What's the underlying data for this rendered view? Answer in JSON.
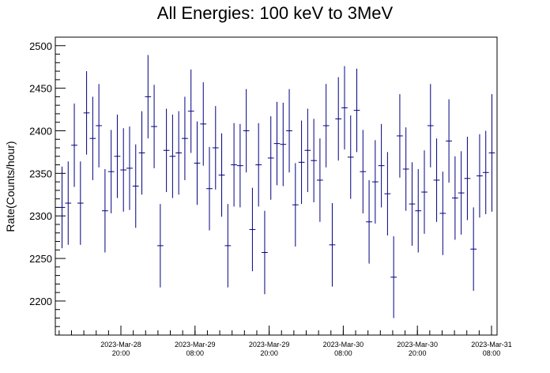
{
  "chart_data": {
    "type": "scatter",
    "title": "All Energies:  100 keV to 3MeV",
    "xlabel": "",
    "ylabel": "Rate(Counts/hour)",
    "ylim": [
      2160,
      2510
    ],
    "y_ticks": [
      2200,
      2250,
      2300,
      2350,
      2400,
      2450,
      2500
    ],
    "x_tick_labels": [
      {
        "date": "2023-Mar-28",
        "time": "20:00"
      },
      {
        "date": "2023-Mar-29",
        "time": "08:00"
      },
      {
        "date": "2023-Mar-29",
        "time": "20:00"
      },
      {
        "date": "2023-Mar-30",
        "time": "08:00"
      },
      {
        "date": "2023-Mar-30",
        "time": "20:00"
      },
      {
        "date": "2023-Mar-31",
        "time": "08:00"
      }
    ],
    "grid": false,
    "marker_color": "#000080",
    "series": [
      {
        "values": [
          2310,
          2315,
          2383,
          2315,
          2421,
          2391,
          2406,
          2306,
          2352,
          2370,
          2354,
          2356,
          2335,
          2374,
          2440,
          2405,
          2265,
          2377,
          2370,
          2374,
          2391,
          2423,
          2362,
          2408,
          2332,
          2380,
          2348,
          2265,
          2360,
          2359,
          2400,
          2284,
          2360,
          2257,
          2368,
          2385,
          2384,
          2400,
          2313,
          2363,
          2377,
          2365,
          2342,
          2406,
          2266,
          2414,
          2427,
          2369,
          2424,
          2352,
          2293,
          2340,
          2359,
          2326,
          2228,
          2394,
          2355,
          2314,
          2306,
          2328,
          2406,
          2342,
          2303,
          2388,
          2321,
          2327,
          2344,
          2261,
          2347,
          2351,
          2374
        ],
        "errors": [
          48,
          49,
          49,
          49,
          49,
          49,
          49,
          49,
          49,
          49,
          49,
          49,
          49,
          49,
          49,
          49,
          49,
          49,
          49,
          49,
          49,
          49,
          49,
          49,
          49,
          49,
          49,
          49,
          49,
          49,
          49,
          49,
          49,
          49,
          49,
          49,
          49,
          49,
          49,
          49,
          49,
          49,
          49,
          49,
          49,
          49,
          49,
          49,
          49,
          49,
          49,
          49,
          49,
          49,
          48,
          49,
          49,
          49,
          49,
          49,
          49,
          49,
          49,
          49,
          49,
          49,
          49,
          49,
          49,
          49,
          69
        ]
      }
    ]
  }
}
